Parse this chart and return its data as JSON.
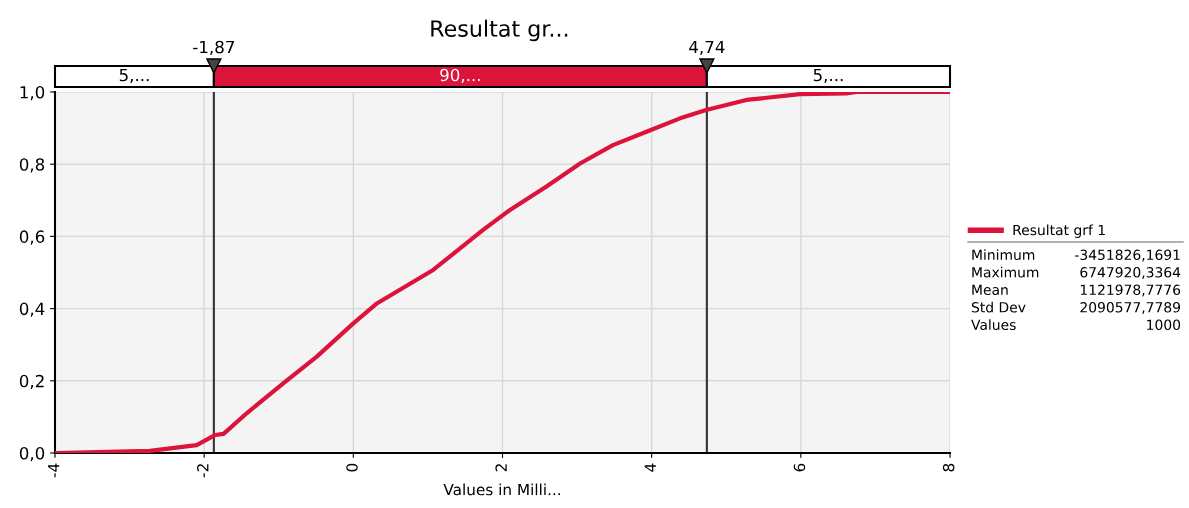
{
  "chart_data": {
    "type": "line",
    "title": "Resultat gr...",
    "xlabel": "Values in Milli...",
    "x": [
      -4,
      -3.98,
      -2.73,
      -2.1,
      -1.85,
      -1.74,
      -1.43,
      -0.94,
      -0.49,
      0.0,
      0.32,
      1.07,
      1.74,
      2.1,
      2.59,
      3.04,
      3.48,
      3.93,
      4.38,
      4.73,
      5.27,
      5.99,
      6.61,
      6.75,
      8
    ],
    "series": [
      {
        "name": "Resultat grf 1",
        "color": "#dc143c",
        "values": [
          0,
          0,
          0.006,
          0.022,
          0.05,
          0.053,
          0.11,
          0.193,
          0.267,
          0.359,
          0.415,
          0.507,
          0.618,
          0.673,
          0.738,
          0.802,
          0.853,
          0.89,
          0.927,
          0.95,
          0.978,
          0.994,
          0.996,
          1.0,
          1.0
        ]
      }
    ],
    "xlim": [
      -4,
      8
    ],
    "xticks": [
      -4,
      -2,
      0,
      2,
      4,
      6,
      8
    ],
    "ylim": [
      0,
      1
    ],
    "yticks": [
      {
        "value": 0,
        "label": "0,0"
      },
      {
        "value": 0.2,
        "label": "0,2"
      },
      {
        "value": 0.4,
        "label": "0,4"
      },
      {
        "value": 0.6,
        "label": "0,6"
      },
      {
        "value": 0.8,
        "label": "0,8"
      },
      {
        "value": 1,
        "label": "1,0"
      }
    ],
    "ref_lines": [
      {
        "axis": "x",
        "value": -1.87,
        "label": "-1,87",
        "color": "#333333"
      },
      {
        "axis": "x",
        "value": 4.74,
        "label": "4,74",
        "color": "#333333"
      }
    ],
    "annotations": [
      "5,...",
      "90,...",
      "5,...",
      "Minimum -3451826,1691",
      "Maximum 6747920,3364",
      "Mean 1121978,7776",
      "Std Dev 2090577,7789",
      "Values 1000"
    ],
    "grid": true,
    "legend": "right",
    "marker": "none",
    "line_style": "solid"
  }
}
